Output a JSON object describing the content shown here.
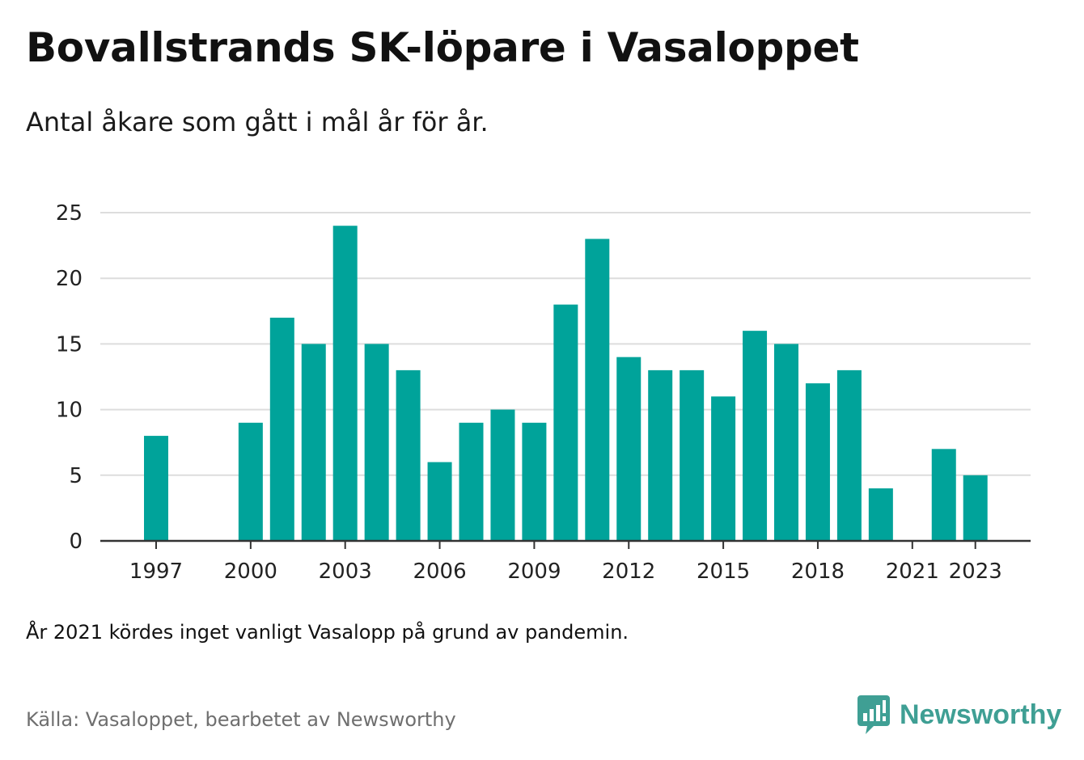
{
  "header": {
    "title": "Bovallstrands SK-löpare i Vasaloppet",
    "subtitle": "Antal åkare som gått i mål år för år."
  },
  "footer": {
    "note": "År 2021 kördes inget vanligt Vasalopp på grund av pandemin.",
    "source": "Källa: Vasaloppet, bearbetet av Newsworthy",
    "brand": "Newsworthy",
    "brand_icon": "newsworthy-logo-icon"
  },
  "colors": {
    "bar": "#00a39a",
    "grid": "#dddddd",
    "axis": "#333333",
    "brand": "#3f9f94"
  },
  "chart_data": {
    "type": "bar",
    "categories": [
      1997,
      1998,
      1999,
      2000,
      2001,
      2002,
      2003,
      2004,
      2005,
      2006,
      2007,
      2008,
      2009,
      2010,
      2011,
      2012,
      2013,
      2014,
      2015,
      2016,
      2017,
      2018,
      2019,
      2020,
      2021,
      2022,
      2023
    ],
    "values": [
      8,
      null,
      null,
      9,
      17,
      15,
      24,
      15,
      13,
      6,
      9,
      10,
      9,
      18,
      23,
      14,
      13,
      13,
      11,
      16,
      15,
      12,
      13,
      4,
      null,
      7,
      5
    ],
    "x_tick_labels": [
      "1997",
      "2000",
      "2003",
      "2006",
      "2009",
      "2012",
      "2015",
      "2018",
      "2021",
      "2023"
    ],
    "y_ticks": [
      0,
      5,
      10,
      15,
      20,
      25
    ],
    "ylim": [
      0,
      25
    ],
    "xlabel": "",
    "ylabel": "",
    "grid": "horizontal",
    "legend": "none"
  }
}
